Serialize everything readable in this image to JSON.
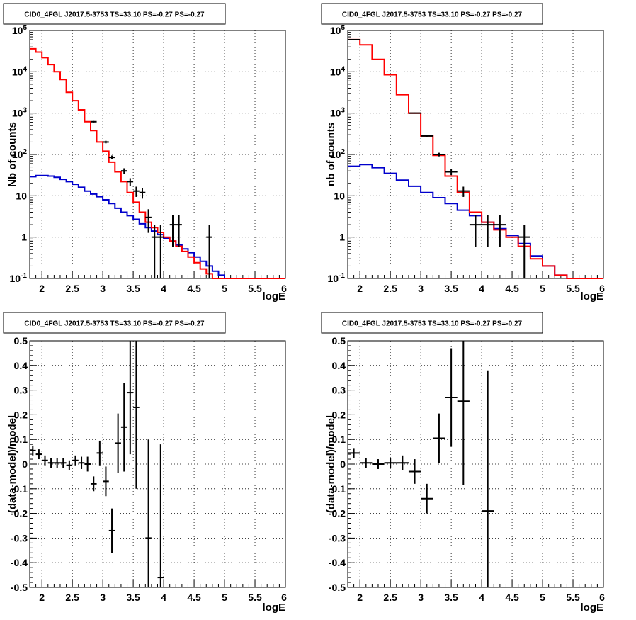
{
  "colors": {
    "data": "#000000",
    "model": "#ff0000",
    "background_model": "#0000cc"
  },
  "chart_data": [
    {
      "type": "line",
      "title": "CID0_4FGL J2017.5-3753 TS=33.10 PS=-0.27 PS=-0.27",
      "xlabel": "logE",
      "ylabel": "Nb of counts",
      "yscale": "log",
      "xlim": [
        1.8,
        6.0
      ],
      "ylim": [
        0.1,
        100000
      ],
      "grid": true,
      "x_ticks": [
        "2",
        "2.5",
        "3",
        "3.5",
        "4",
        "4.5",
        "5",
        "5.5",
        "6"
      ],
      "y_ticks": [
        "10^-1",
        "1",
        "10",
        "10^2",
        "10^3",
        "10^4",
        "10^5"
      ],
      "bin_edges": [
        1.8,
        1.9,
        2.0,
        2.1,
        2.2,
        2.3,
        2.4,
        2.5,
        2.6,
        2.7,
        2.8,
        2.9,
        3.0,
        3.1,
        3.2,
        3.3,
        3.4,
        3.5,
        3.6,
        3.7,
        3.8,
        3.9,
        4.0,
        4.1,
        4.2,
        4.3,
        4.4,
        4.5,
        4.6,
        4.7,
        4.8,
        4.9,
        5.0,
        5.1,
        5.2,
        5.3,
        5.4,
        5.5,
        5.6,
        5.7,
        5.8,
        5.9,
        6.0
      ],
      "series": [
        {
          "values": [
            36000,
            30000,
            22000,
            15000,
            10000,
            6500,
            3200,
            2000,
            1200,
            620,
            380,
            200,
            120,
            65,
            38,
            22,
            12,
            7,
            4,
            2.3,
            1.7,
            1.3,
            1.0,
            0.8,
            0.6,
            0.45,
            0.33,
            0.24,
            0.17,
            0.13,
            0.1,
            0.1,
            0.1,
            0.1,
            0.1,
            0.1,
            0.1,
            0.1,
            0.1,
            0.1,
            0.1,
            0.1
          ]
        },
        {
          "values": [
            29,
            31,
            31,
            30,
            28,
            25,
            22,
            19,
            16,
            13,
            11,
            9.5,
            8,
            6.5,
            5,
            4,
            3.3,
            2.7,
            2.1,
            1.7,
            1.4,
            1.15,
            0.95,
            0.8,
            0.65,
            0.52,
            0.42,
            0.33,
            0.26,
            0.2,
            0.15,
            0.12,
            0.1,
            0.1,
            0.1,
            0.1,
            0.1,
            0.1,
            0.1,
            0.1,
            0.1,
            0.1
          ]
        }
      ],
      "points": [
        {
          "x": 2.85,
          "y": 620,
          "xerr": 0.05
        },
        {
          "x": 3.05,
          "y": 200,
          "xerr": 0.05
        },
        {
          "x": 3.15,
          "y": 85,
          "xerr": 0.05
        },
        {
          "x": 3.35,
          "y": 40,
          "xerr": 0.05
        },
        {
          "x": 3.45,
          "y": 22,
          "xerr": 0.05
        },
        {
          "x": 3.55,
          "y": 13,
          "xerr": 0.05
        },
        {
          "x": 3.65,
          "y": 12,
          "xerr": 0.05
        },
        {
          "x": 3.75,
          "y": 3,
          "xerr": 0.05
        },
        {
          "x": 3.85,
          "y": 1,
          "xerr": 0.05
        },
        {
          "x": 3.95,
          "y": 1,
          "xerr": 0.05
        },
        {
          "x": 4.15,
          "y": 2,
          "xerr": 0.05
        },
        {
          "x": 4.25,
          "y": 2,
          "xerr": 0.05
        },
        {
          "x": 4.75,
          "y": 1,
          "xerr": 0.05
        }
      ]
    },
    {
      "type": "line",
      "title": "CID0_4FGL J2017.5-3753 TS=33.10 PS=-0.27 PS=-0.27",
      "xlabel": "logE",
      "ylabel": "nb of counts",
      "yscale": "log",
      "xlim": [
        1.8,
        6.0
      ],
      "ylim": [
        0.1,
        100000
      ],
      "grid": true,
      "x_ticks": [
        "2",
        "2.5",
        "3",
        "3.5",
        "4",
        "4.5",
        "5",
        "5.5",
        "6"
      ],
      "y_ticks": [
        "10^-1",
        "1",
        "10",
        "10^2",
        "10^3",
        "10^4",
        "10^5"
      ],
      "bin_edges": [
        1.8,
        2.0,
        2.2,
        2.4,
        2.6,
        2.8,
        3.0,
        3.2,
        3.4,
        3.6,
        3.8,
        4.0,
        4.2,
        4.4,
        4.6,
        4.8,
        5.0,
        5.2,
        5.4,
        5.6,
        5.8,
        6.0
      ],
      "series": [
        {
          "values": [
            60000,
            45000,
            20000,
            8500,
            2800,
            1000,
            280,
            95,
            30,
            12,
            4,
            2.3,
            1.5,
            1.0,
            0.6,
            0.3,
            0.2,
            0.12,
            0.1,
            0.1,
            0.1
          ]
        },
        {
          "values": [
            52,
            57,
            48,
            35,
            24,
            17,
            12,
            9,
            6.5,
            4.5,
            3.3,
            2.3,
            1.6,
            1.1,
            0.7,
            0.35,
            0.2,
            0.12,
            0.1,
            0.1,
            0.1
          ]
        }
      ],
      "points": [
        {
          "x": 1.9,
          "y": 60000,
          "xerr": 0.1
        },
        {
          "x": 2.9,
          "y": 1000,
          "xerr": 0.1
        },
        {
          "x": 3.1,
          "y": 280,
          "xerr": 0.1
        },
        {
          "x": 3.3,
          "y": 100,
          "xerr": 0.1
        },
        {
          "x": 3.5,
          "y": 38,
          "xerr": 0.1
        },
        {
          "x": 3.7,
          "y": 13,
          "xerr": 0.1
        },
        {
          "x": 3.9,
          "y": 2,
          "xerr": 0.1
        },
        {
          "x": 4.1,
          "y": 2,
          "xerr": 0.1
        },
        {
          "x": 4.3,
          "y": 2,
          "xerr": 0.1
        },
        {
          "x": 4.7,
          "y": 1,
          "xerr": 0.1
        }
      ]
    },
    {
      "type": "scatter",
      "title": "CID0_4FGL J2017.5-3753 TS=33.10 PS=-0.27 PS=-0.27",
      "xlabel": "logE",
      "ylabel": "(data-model)/model",
      "xlim": [
        1.8,
        6.0
      ],
      "ylim": [
        -0.5,
        0.5
      ],
      "grid": true,
      "x_ticks": [
        "2",
        "2.5",
        "3",
        "3.5",
        "4",
        "4.5",
        "5",
        "5.5",
        "6"
      ],
      "y_ticks": [
        "-0.5",
        "-0.4",
        "-0.3",
        "-0.2",
        "-0.1",
        "0",
        "0.1",
        "0.2",
        "0.3",
        "0.4",
        "0.5"
      ],
      "points": [
        {
          "x": 1.85,
          "y": 0.055,
          "yerr": 0.02,
          "xerr": 0.05
        },
        {
          "x": 1.95,
          "y": 0.04,
          "yerr": 0.02,
          "xerr": 0.05
        },
        {
          "x": 2.05,
          "y": 0.015,
          "yerr": 0.02,
          "xerr": 0.05
        },
        {
          "x": 2.15,
          "y": 0.005,
          "yerr": 0.02,
          "xerr": 0.05
        },
        {
          "x": 2.25,
          "y": 0.005,
          "yerr": 0.02,
          "xerr": 0.05
        },
        {
          "x": 2.35,
          "y": 0.005,
          "yerr": 0.02,
          "xerr": 0.05
        },
        {
          "x": 2.45,
          "y": -0.005,
          "yerr": 0.02,
          "xerr": 0.05
        },
        {
          "x": 2.55,
          "y": 0.015,
          "yerr": 0.02,
          "xerr": 0.05
        },
        {
          "x": 2.65,
          "y": 0.005,
          "yerr": 0.025,
          "xerr": 0.05
        },
        {
          "x": 2.75,
          "y": 0.0,
          "yerr": 0.03,
          "xerr": 0.05
        },
        {
          "x": 2.85,
          "y": -0.08,
          "yerr": 0.03,
          "xerr": 0.05
        },
        {
          "x": 2.95,
          "y": 0.045,
          "yerr": 0.05,
          "xerr": 0.05
        },
        {
          "x": 3.05,
          "y": -0.07,
          "yerr": 0.06,
          "xerr": 0.05
        },
        {
          "x": 3.15,
          "y": -0.27,
          "yerr": 0.09,
          "xerr": 0.05
        },
        {
          "x": 3.25,
          "y": 0.085,
          "yerr": 0.12,
          "xerr": 0.05
        },
        {
          "x": 3.35,
          "y": 0.15,
          "yerr": 0.18,
          "xerr": 0.05
        },
        {
          "x": 3.45,
          "y": 0.29,
          "yerr": 0.25,
          "xerr": 0.05
        },
        {
          "x": 3.55,
          "y": 0.23,
          "yerr": 0.33,
          "xerr": 0.05
        },
        {
          "x": 3.75,
          "y": -0.3,
          "yerr": 0.4,
          "xerr": 0.05
        },
        {
          "x": 3.95,
          "y": -0.46,
          "yerr": 0.54,
          "xerr": 0.05
        }
      ]
    },
    {
      "type": "scatter",
      "title": "CID0_4FGL J2017.5-3753 TS=33.10 PS=-0.27 PS=-0.27",
      "xlabel": "logE",
      "ylabel": "(data-model)/model",
      "xlim": [
        1.8,
        6.0
      ],
      "ylim": [
        -0.5,
        0.5
      ],
      "grid": true,
      "x_ticks": [
        "2",
        "2.5",
        "3",
        "3.5",
        "4",
        "4.5",
        "5",
        "5.5",
        "6"
      ],
      "y_ticks": [
        "-0.5",
        "-0.4",
        "-0.3",
        "-0.2",
        "-0.1",
        "0",
        "0.1",
        "0.2",
        "0.3",
        "0.4",
        "0.5"
      ],
      "points": [
        {
          "x": 1.9,
          "y": 0.045,
          "yerr": 0.02,
          "xerr": 0.1
        },
        {
          "x": 2.1,
          "y": 0.005,
          "yerr": 0.02,
          "xerr": 0.1
        },
        {
          "x": 2.3,
          "y": 0.0,
          "yerr": 0.02,
          "xerr": 0.1
        },
        {
          "x": 2.5,
          "y": 0.005,
          "yerr": 0.02,
          "xerr": 0.1
        },
        {
          "x": 2.7,
          "y": 0.005,
          "yerr": 0.03,
          "xerr": 0.1
        },
        {
          "x": 2.9,
          "y": -0.03,
          "yerr": 0.05,
          "xerr": 0.1
        },
        {
          "x": 3.1,
          "y": -0.14,
          "yerr": 0.06,
          "xerr": 0.1
        },
        {
          "x": 3.3,
          "y": 0.105,
          "yerr": 0.1,
          "xerr": 0.1
        },
        {
          "x": 3.5,
          "y": 0.27,
          "yerr": 0.2,
          "xerr": 0.1
        },
        {
          "x": 3.7,
          "y": 0.255,
          "yerr": 0.34,
          "xerr": 0.1
        },
        {
          "x": 4.1,
          "y": -0.19,
          "yerr": 0.57,
          "xerr": 0.1
        }
      ]
    }
  ]
}
